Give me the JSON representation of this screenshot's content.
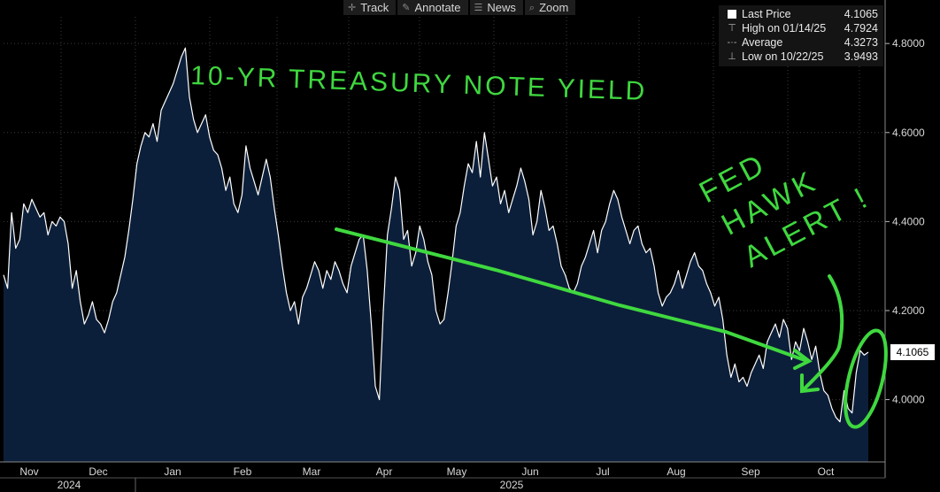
{
  "toolbar": {
    "items": [
      {
        "label": "Track",
        "icon": "crosshair-icon"
      },
      {
        "label": "Annotate",
        "icon": "pencil-icon"
      },
      {
        "label": "News",
        "icon": "news-icon"
      },
      {
        "label": "Zoom",
        "icon": "magnifier-icon"
      }
    ]
  },
  "legend": {
    "last_price": {
      "label": "Last Price",
      "value": "4.1065"
    },
    "high": {
      "label": "High on 01/14/25",
      "value": "4.7924"
    },
    "average": {
      "label": "Average",
      "value": "4.3273"
    },
    "low": {
      "label": "Low on 10/22/25",
      "value": "3.9493"
    }
  },
  "annotations": {
    "title": "10-YR TREASURY NOTE YIELD",
    "alert": [
      "FED",
      "HAWK",
      "ALERT !"
    ]
  },
  "colors": {
    "background": "#000000",
    "area_fill": "#0c1f3a",
    "line": "#ffffff",
    "grid": "#3c3c3c",
    "annotation": "#3fd83f",
    "last_price_label": "#ffffff"
  },
  "chart_data": {
    "type": "area",
    "title": "",
    "xlabel": "",
    "ylabel": "",
    "ylim": [
      3.86,
      4.86
    ],
    "y_ticks": [
      "4.0000",
      "4.2000",
      "4.4000",
      "4.6000",
      "4.8000"
    ],
    "x_month_labels": [
      "Nov",
      "Dec",
      "Jan",
      "Feb",
      "Mar",
      "Apr",
      "May",
      "Jun",
      "Jul",
      "Aug",
      "Sep",
      "Oct"
    ],
    "x_year_labels": [
      "2024",
      "2025"
    ],
    "last_value_label": "4.1065",
    "grid": true,
    "series": [
      {
        "values": [
          4.28,
          4.25,
          4.42,
          4.34,
          4.36,
          4.44,
          4.42,
          4.45,
          4.43,
          4.41,
          4.42,
          4.37,
          4.4,
          4.39,
          4.41,
          4.4,
          4.35,
          4.25,
          4.29,
          4.22,
          4.17,
          4.19,
          4.22,
          4.18,
          4.17,
          4.15,
          4.18,
          4.22,
          4.24,
          4.28,
          4.32,
          4.38,
          4.45,
          4.53,
          4.57,
          4.6,
          4.59,
          4.62,
          4.58,
          4.65,
          4.67,
          4.69,
          4.71,
          4.74,
          4.77,
          4.79,
          4.68,
          4.63,
          4.6,
          4.62,
          4.64,
          4.59,
          4.56,
          4.55,
          4.52,
          4.47,
          4.5,
          4.44,
          4.42,
          4.46,
          4.57,
          4.52,
          4.49,
          4.46,
          4.5,
          4.54,
          4.5,
          4.43,
          4.37,
          4.3,
          4.24,
          4.2,
          4.22,
          4.17,
          4.23,
          4.25,
          4.28,
          4.31,
          4.29,
          4.25,
          4.29,
          4.27,
          4.31,
          4.29,
          4.26,
          4.24,
          4.3,
          4.33,
          4.36,
          4.37,
          4.29,
          4.17,
          4.03,
          4.0,
          4.2,
          4.37,
          4.43,
          4.5,
          4.47,
          4.36,
          4.38,
          4.3,
          4.33,
          4.39,
          4.36,
          4.31,
          4.28,
          4.2,
          4.17,
          4.18,
          4.24,
          4.31,
          4.39,
          4.42,
          4.48,
          4.53,
          4.51,
          4.58,
          4.5,
          4.6,
          4.54,
          4.48,
          4.5,
          4.44,
          4.47,
          4.42,
          4.45,
          4.48,
          4.52,
          4.49,
          4.45,
          4.37,
          4.4,
          4.47,
          4.43,
          4.38,
          4.39,
          4.35,
          4.3,
          4.28,
          4.25,
          4.24,
          4.26,
          4.3,
          4.32,
          4.35,
          4.38,
          4.33,
          4.38,
          4.4,
          4.44,
          4.47,
          4.45,
          4.41,
          4.38,
          4.35,
          4.38,
          4.39,
          4.35,
          4.33,
          4.34,
          4.3,
          4.24,
          4.21,
          4.23,
          4.24,
          4.26,
          4.29,
          4.25,
          4.28,
          4.31,
          4.33,
          4.3,
          4.29,
          4.26,
          4.24,
          4.21,
          4.23,
          4.18,
          4.1,
          4.05,
          4.08,
          4.04,
          4.05,
          4.03,
          4.06,
          4.08,
          4.1,
          4.07,
          4.13,
          4.15,
          4.17,
          4.14,
          4.18,
          4.16,
          4.09,
          4.13,
          4.11,
          4.16,
          4.13,
          4.09,
          4.12,
          4.06,
          4.02,
          4.01,
          3.98,
          3.96,
          3.95,
          4.02,
          3.98,
          3.97,
          4.06,
          4.11,
          4.1,
          4.1065
        ]
      }
    ]
  }
}
